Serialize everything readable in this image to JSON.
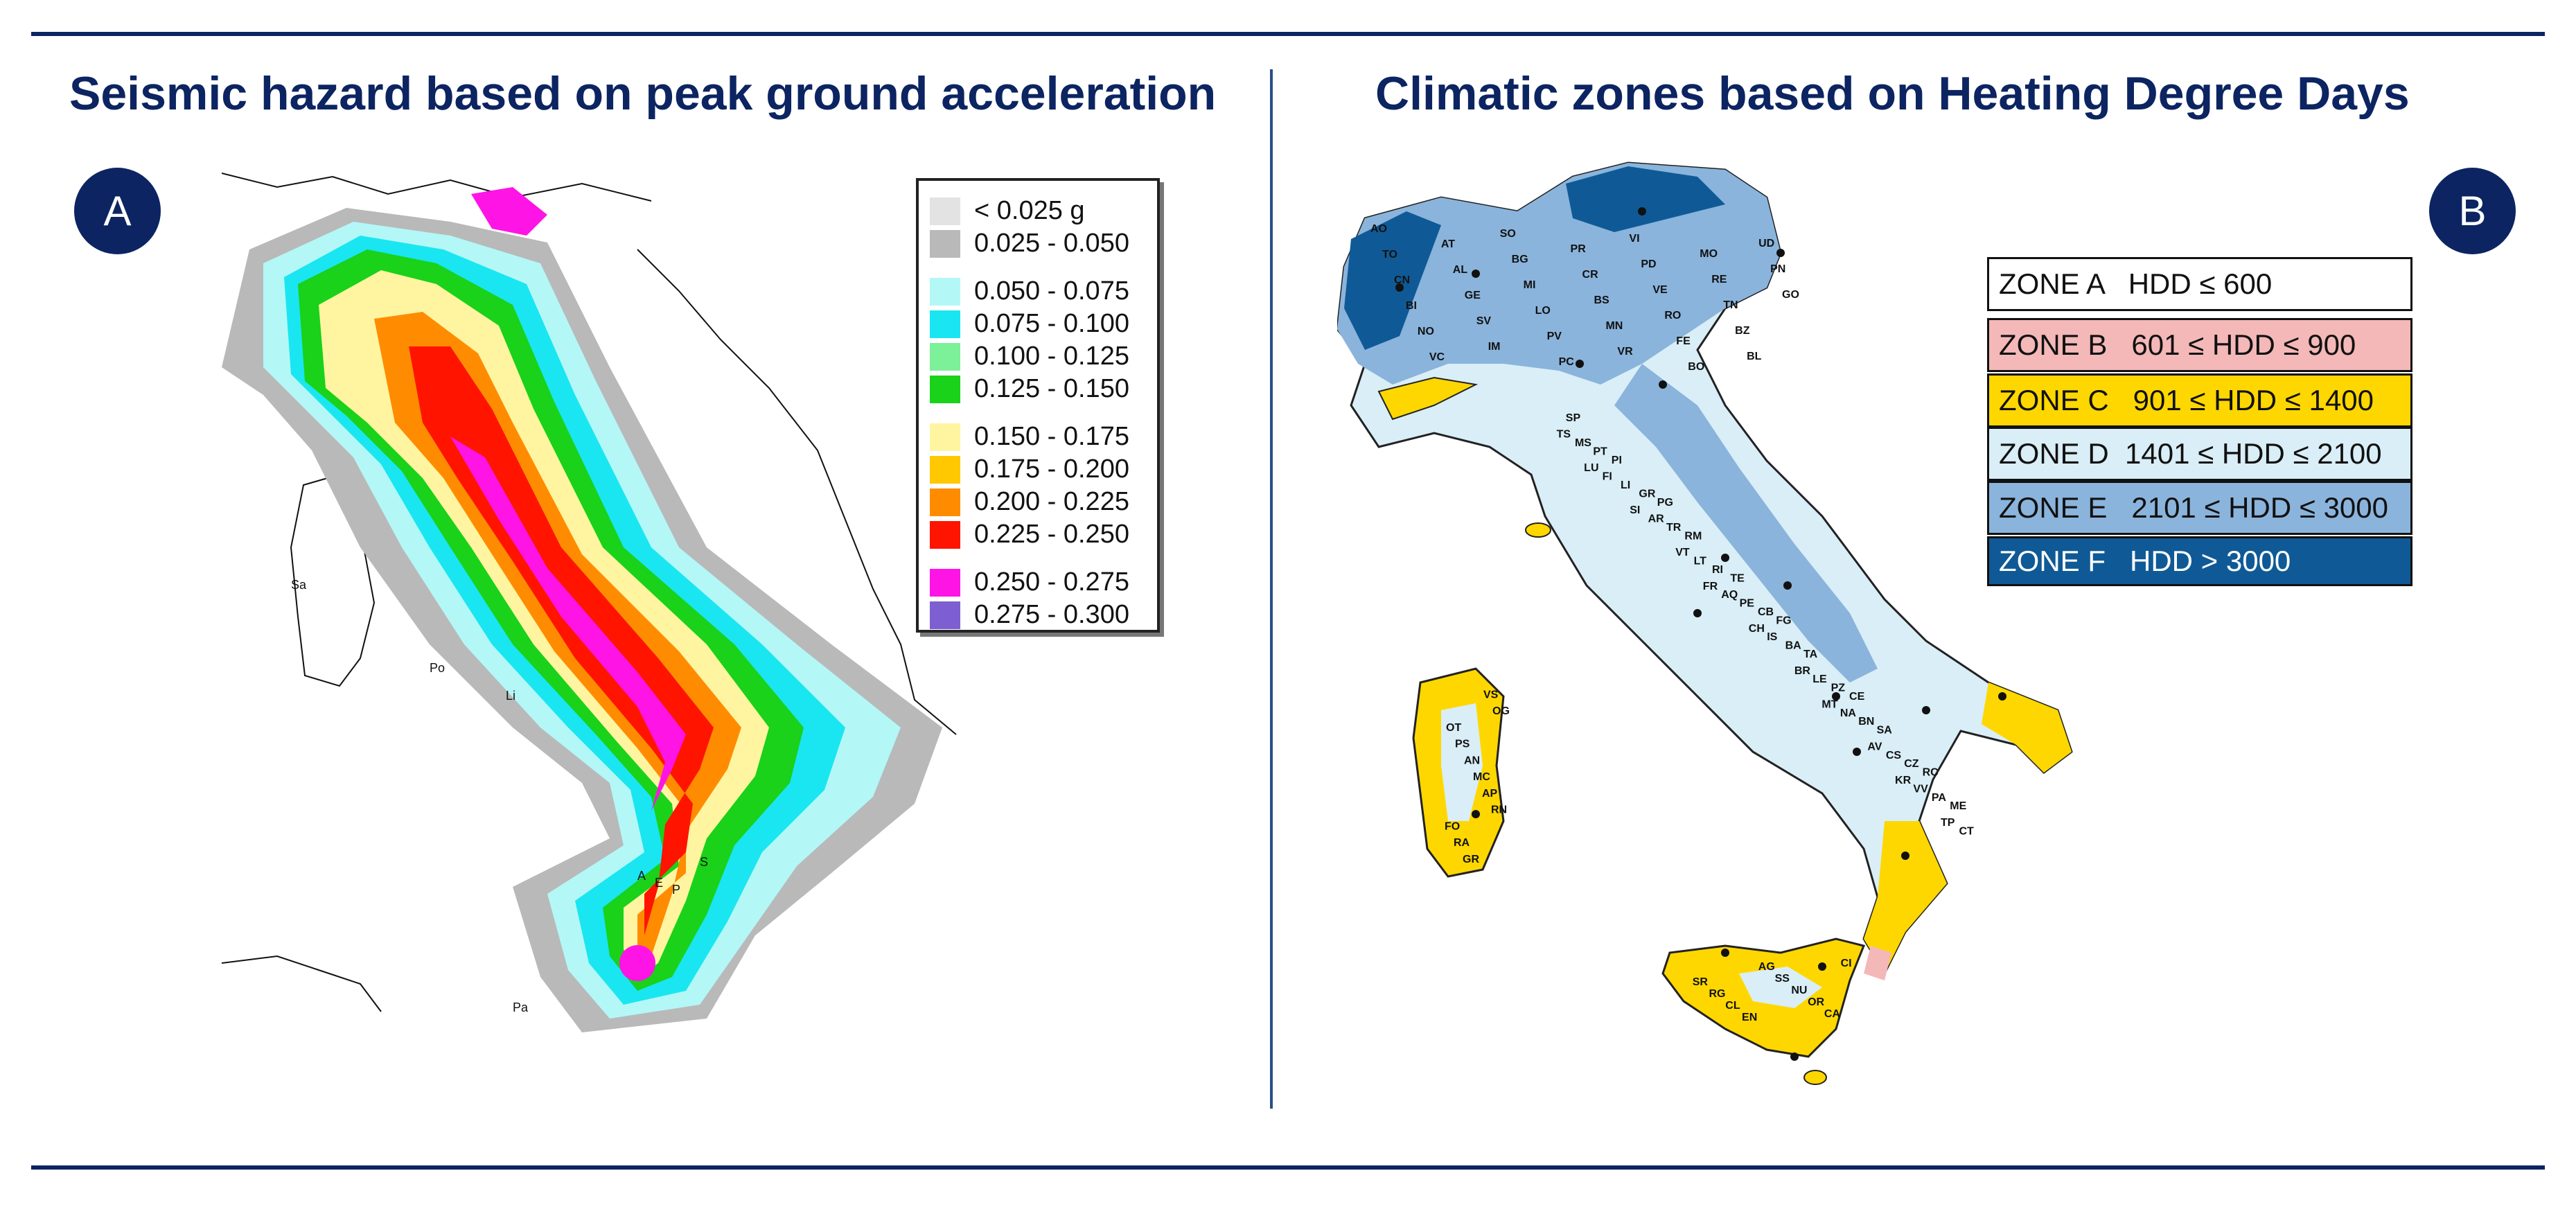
{
  "panel_a": {
    "title": "Seismic hazard based on peak ground acceleration",
    "badge": "A",
    "legend": [
      {
        "label": "< 0.025 g",
        "color": "#e3e3e3"
      },
      {
        "label": "0.025 - 0.050",
        "color": "#b9b9b9"
      },
      {
        "label": "0.050 - 0.075",
        "color": "#b4f7f7"
      },
      {
        "label": "0.075 - 0.100",
        "color": "#19e6f0"
      },
      {
        "label": "0.100 - 0.125",
        "color": "#7df09a"
      },
      {
        "label": "0.125 - 0.150",
        "color": "#19d219"
      },
      {
        "label": "0.150 - 0.175",
        "color": "#fff5a0"
      },
      {
        "label": "0.175 - 0.200",
        "color": "#ffc800"
      },
      {
        "label": "0.200 - 0.225",
        "color": "#ff8c00"
      },
      {
        "label": "0.225 - 0.250",
        "color": "#ff1400"
      },
      {
        "label": "0.250 - 0.275",
        "color": "#ff14e6"
      },
      {
        "label": "0.275 - 0.300",
        "color": "#7d5fd2"
      }
    ],
    "map_labels": [
      "Sa",
      "Po",
      "Li",
      "A",
      "E",
      "P",
      "S",
      "Pa"
    ]
  },
  "panel_b": {
    "title": "Climatic zones based on Heating Degree Days",
    "badge": "B",
    "zones": [
      {
        "label": "ZONE A   HDD ≤ 600",
        "color": "#ffffff"
      },
      {
        "label": "ZONE B   601 ≤ HDD ≤ 900",
        "color": "#f4b8b8"
      },
      {
        "label": "ZONE C   901 ≤ HDD ≤ 1400",
        "color": "#ffd700"
      },
      {
        "label": "ZONE D  1401 ≤ HDD ≤ 2100",
        "color": "#d9eef7"
      },
      {
        "label": "ZONE E   2101 ≤ HDD ≤ 3000",
        "color": "#8ab4dc"
      },
      {
        "label": "ZONE F   HDD > 3000",
        "color": "#0f5a96"
      }
    ],
    "city_labels": [
      "AO",
      "TO",
      "CN",
      "BI",
      "NO",
      "VC",
      "AT",
      "AL",
      "GE",
      "SV",
      "IM",
      "SO",
      "BG",
      "MI",
      "LO",
      "PV",
      "PC",
      "PR",
      "CR",
      "BS",
      "MN",
      "VR",
      "VI",
      "PD",
      "VE",
      "RO",
      "FE",
      "BO",
      "MO",
      "RE",
      "TN",
      "BZ",
      "BL",
      "UD",
      "PN",
      "GO",
      "TS",
      "SP",
      "MS",
      "LU",
      "PT",
      "FI",
      "PI",
      "LI",
      "SI",
      "GR",
      "AR",
      "PG",
      "TR",
      "VT",
      "RM",
      "LT",
      "FR",
      "RI",
      "AQ",
      "TE",
      "PE",
      "CH",
      "CB",
      "IS",
      "FG",
      "BA",
      "BR",
      "TA",
      "LE",
      "MT",
      "PZ",
      "NA",
      "CE",
      "BN",
      "AV",
      "SA",
      "CS",
      "KR",
      "CZ",
      "VV",
      "RC",
      "PA",
      "TP",
      "ME",
      "CT",
      "SR",
      "RG",
      "CL",
      "EN",
      "AG",
      "SS",
      "NU",
      "OR",
      "CA",
      "CI",
      "VS",
      "OG",
      "OT",
      "PS",
      "AN",
      "MC",
      "AP",
      "RN",
      "FO",
      "RA",
      "GR"
    ]
  }
}
